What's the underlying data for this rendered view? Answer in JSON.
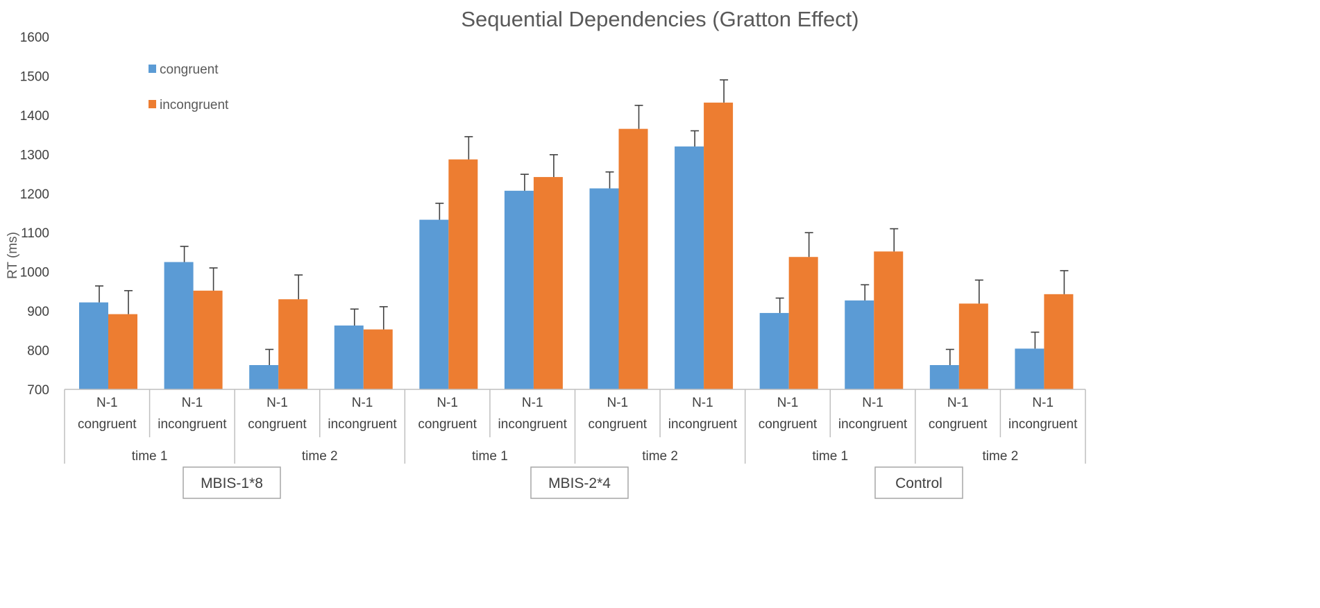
{
  "chart_data": {
    "type": "bar",
    "title": "Sequential Dependencies (Gratton Effect)",
    "ylabel": "RT (ms)",
    "xlabel": "",
    "ylim": [
      700,
      1600
    ],
    "yticks": [
      700,
      800,
      900,
      1000,
      1100,
      1200,
      1300,
      1400,
      1500,
      1600
    ],
    "grid": false,
    "legend_position": "top-left",
    "categories": [
      {
        "prev": "N-1",
        "trial": "congruent"
      },
      {
        "prev": "N-1",
        "trial": "incongruent"
      },
      {
        "prev": "N-1",
        "trial": "congruent"
      },
      {
        "prev": "N-1",
        "trial": "incongruent"
      },
      {
        "prev": "N-1",
        "trial": "congruent"
      },
      {
        "prev": "N-1",
        "trial": "incongruent"
      },
      {
        "prev": "N-1",
        "trial": "congruent"
      },
      {
        "prev": "N-1",
        "trial": "incongruent"
      },
      {
        "prev": "N-1",
        "trial": "congruent"
      },
      {
        "prev": "N-1",
        "trial": "incongruent"
      },
      {
        "prev": "N-1",
        "trial": "congruent"
      },
      {
        "prev": "N-1",
        "trial": "incongruent"
      }
    ],
    "time_groups": [
      "time 1",
      "time 2",
      "time 1",
      "time 2",
      "time 1",
      "time 2"
    ],
    "condition_groups": [
      "MBIS-1*8",
      "MBIS-2*4",
      "Control"
    ],
    "series": [
      {
        "name": "congruent",
        "color": "#5B9BD5",
        "values": [
          922,
          1025,
          762,
          863,
          1133,
          1207,
          1213,
          1320,
          895,
          927,
          762,
          804
        ],
        "error": [
          42,
          40,
          40,
          42,
          42,
          42,
          42,
          40,
          38,
          40,
          40,
          42
        ]
      },
      {
        "name": "incongruent",
        "color": "#ED7D31",
        "values": [
          892,
          952,
          930,
          853,
          1287,
          1242,
          1365,
          1432,
          1038,
          1052,
          919,
          943
        ],
        "error": [
          60,
          58,
          62,
          58,
          58,
          57,
          60,
          58,
          62,
          58,
          60,
          60
        ]
      }
    ]
  }
}
